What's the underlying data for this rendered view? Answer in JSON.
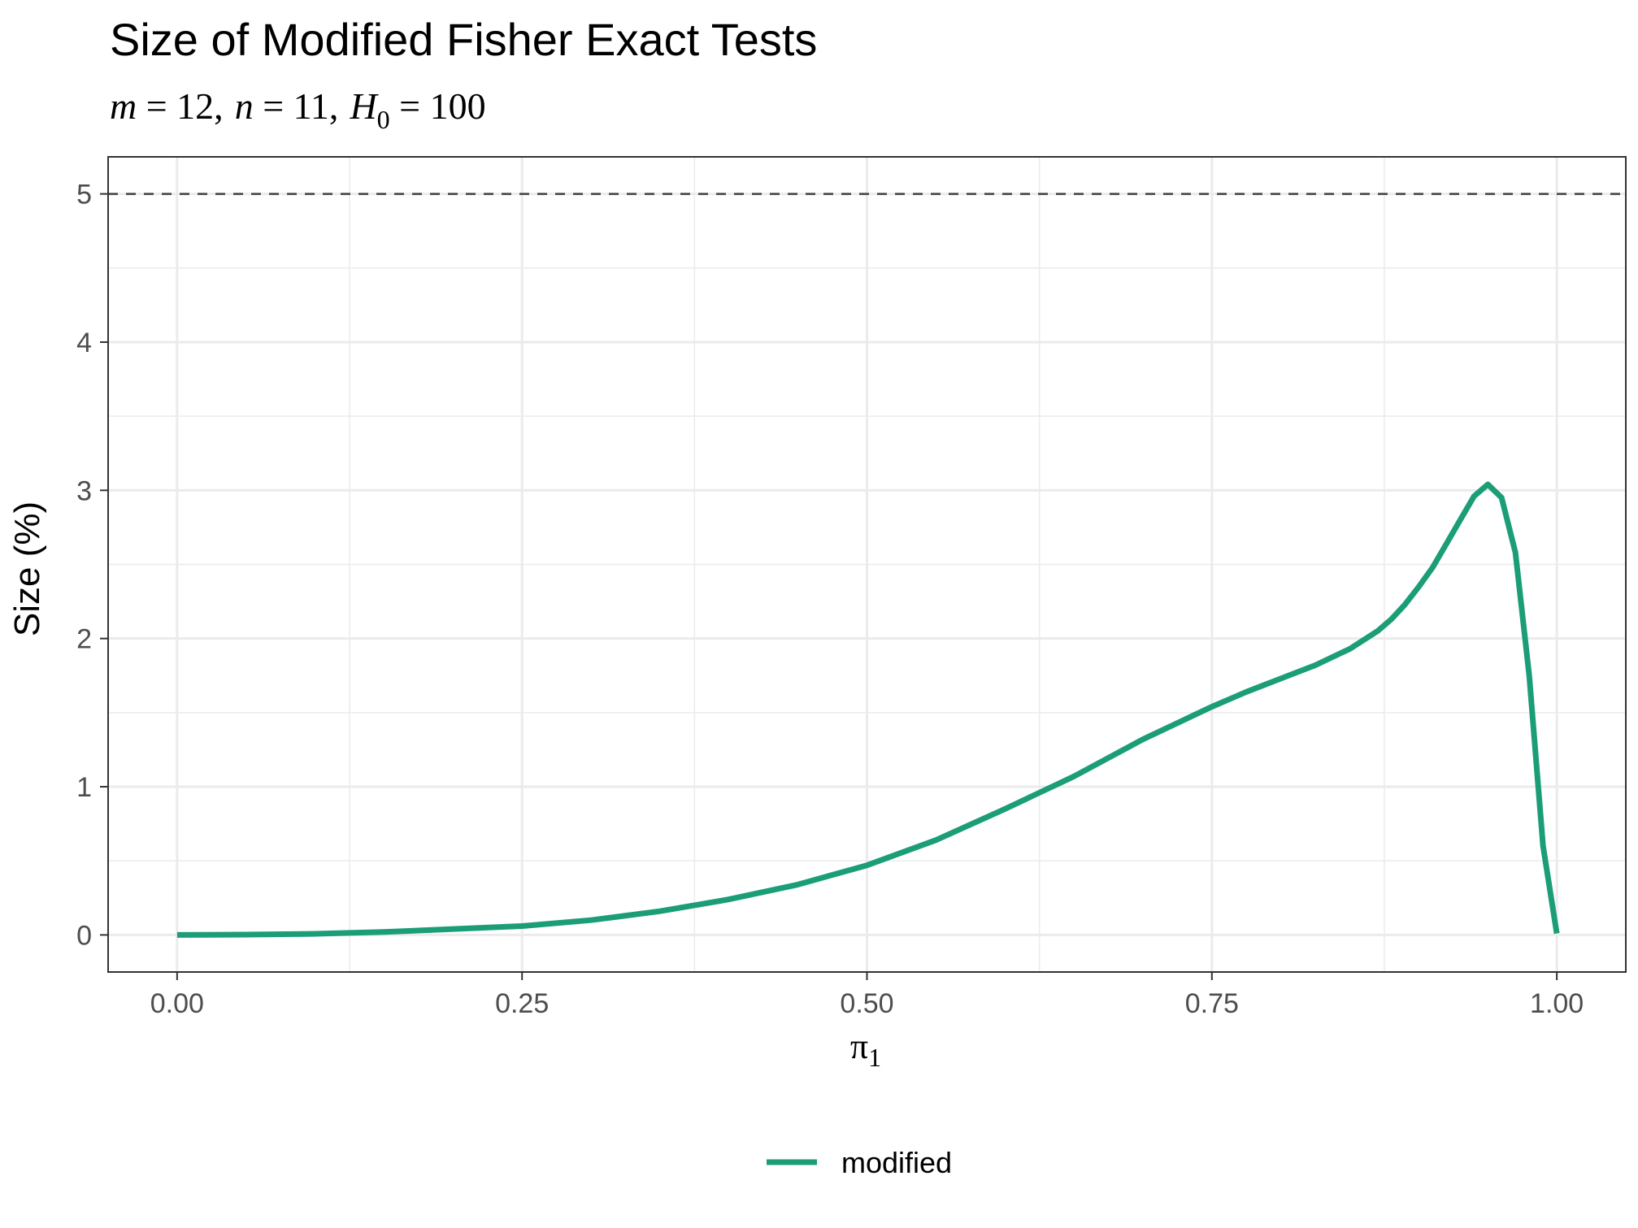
{
  "chart_data": {
    "type": "line",
    "title": "Size of Modified Fisher Exact Tests",
    "subtitle": {
      "m_sym": "m",
      "m_val": " = 12,",
      "n_sym": "n",
      "n_val": " = 11,",
      "h_sym": "H",
      "h_sub": "0",
      "h_val": " = 100"
    },
    "xlabel": {
      "symbol": "π",
      "subscript": "1"
    },
    "ylabel": "Size (%)",
    "xlim": [
      -0.05,
      1.05
    ],
    "ylim": [
      -0.25,
      5.25
    ],
    "xticks": [
      0,
      0.25,
      0.5,
      0.75,
      1
    ],
    "xtick_labels": [
      "0.00",
      "0.25",
      "0.50",
      "0.75",
      "1.00"
    ],
    "yticks": [
      0,
      1,
      2,
      3,
      4,
      5
    ],
    "ytick_labels": [
      "0",
      "1",
      "2",
      "3",
      "4",
      "5"
    ],
    "reference_line": {
      "y": 5,
      "style": "dashed",
      "color": "#444444"
    },
    "grid": true,
    "legend_position": "bottom",
    "series": [
      {
        "name": "modified",
        "color": "#1b9e77",
        "x": [
          0,
          0.05,
          0.1,
          0.15,
          0.2,
          0.25,
          0.3,
          0.35,
          0.4,
          0.45,
          0.5,
          0.55,
          0.6,
          0.65,
          0.7,
          0.75,
          0.775,
          0.8,
          0.825,
          0.85,
          0.87,
          0.88,
          0.89,
          0.9,
          0.91,
          0.92,
          0.93,
          0.94,
          0.95,
          0.96,
          0.97,
          0.98,
          0.99,
          1.0
        ],
        "y": [
          0,
          0.002,
          0.008,
          0.02,
          0.04,
          0.06,
          0.1,
          0.16,
          0.24,
          0.34,
          0.47,
          0.64,
          0.85,
          1.07,
          1.32,
          1.54,
          1.64,
          1.73,
          1.82,
          1.93,
          2.05,
          2.13,
          2.23,
          2.35,
          2.48,
          2.64,
          2.8,
          2.96,
          3.04,
          2.95,
          2.58,
          1.75,
          0.6,
          0.01
        ]
      }
    ]
  }
}
